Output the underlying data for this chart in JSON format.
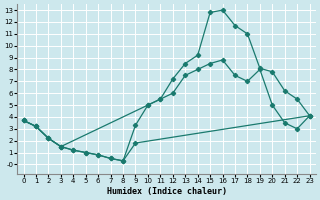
{
  "xlabel": "Humidex (Indice chaleur)",
  "bg_color": "#cde8ed",
  "grid_color": "#ffffff",
  "line_color": "#1a7a6e",
  "xlim": [
    -0.5,
    23.5
  ],
  "ylim": [
    -0.8,
    13.5
  ],
  "yticks": [
    0,
    1,
    2,
    3,
    4,
    5,
    6,
    7,
    8,
    9,
    10,
    11,
    12,
    13
  ],
  "ytick_labels": [
    "-0",
    "1",
    "2",
    "3",
    "4",
    "5",
    "6",
    "7",
    "8",
    "9",
    "10",
    "11",
    "12",
    "13"
  ],
  "xticks": [
    0,
    1,
    2,
    3,
    4,
    5,
    6,
    7,
    8,
    9,
    10,
    11,
    12,
    13,
    14,
    15,
    16,
    17,
    18,
    19,
    20,
    21,
    22,
    23
  ],
  "line1_x": [
    0,
    1,
    2,
    3,
    10,
    11,
    12,
    13,
    14,
    15,
    16,
    17,
    18,
    19,
    20,
    21,
    22,
    23
  ],
  "line1_y": [
    3.7,
    3.2,
    2.2,
    1.5,
    5.0,
    5.5,
    7.2,
    8.5,
    9.2,
    12.8,
    13.0,
    11.7,
    11.0,
    8.1,
    7.8,
    6.2,
    5.5,
    4.1
  ],
  "line2_x": [
    0,
    1,
    2,
    3,
    4,
    5,
    6,
    7,
    8,
    9,
    10,
    11,
    12,
    13,
    14,
    15,
    16,
    17,
    18,
    19,
    20,
    21,
    22,
    23
  ],
  "line2_y": [
    3.7,
    3.2,
    2.2,
    1.5,
    1.2,
    1.0,
    0.8,
    0.5,
    0.3,
    3.3,
    5.0,
    5.5,
    6.0,
    7.5,
    8.0,
    8.5,
    8.8,
    7.5,
    7.0,
    8.0,
    5.0,
    3.5,
    3.0,
    4.1
  ],
  "line3_x": [
    0,
    1,
    2,
    3,
    4,
    5,
    6,
    7,
    8,
    9,
    23
  ],
  "line3_y": [
    3.7,
    3.2,
    2.2,
    1.5,
    1.2,
    1.0,
    0.8,
    0.5,
    0.3,
    1.8,
    4.1
  ]
}
